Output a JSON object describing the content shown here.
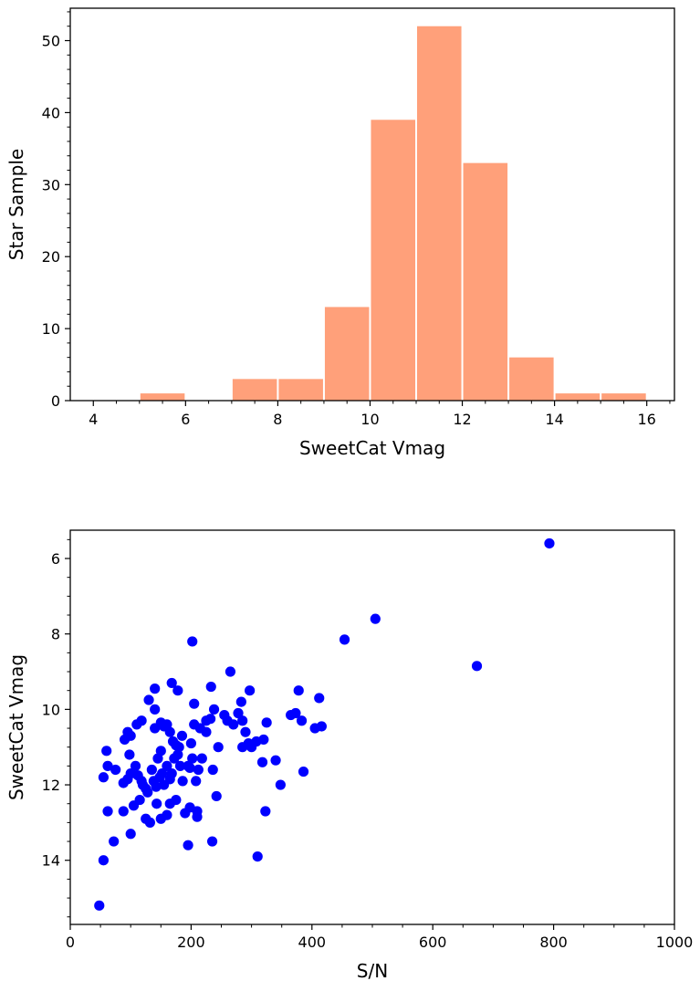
{
  "chart_data": [
    {
      "type": "bar",
      "subtype": "histogram",
      "xlabel": "SweetCat Vmag",
      "ylabel": "Star Sample",
      "xlim": [
        3.5,
        16.6
      ],
      "ylim": [
        0,
        54.5
      ],
      "bin_width": 1,
      "bins": [
        {
          "x0": 5,
          "x1": 6,
          "count": 1
        },
        {
          "x0": 7,
          "x1": 8,
          "count": 3
        },
        {
          "x0": 8,
          "x1": 9,
          "count": 3
        },
        {
          "x0": 9,
          "x1": 10,
          "count": 13
        },
        {
          "x0": 10,
          "x1": 11,
          "count": 39
        },
        {
          "x0": 11,
          "x1": 12,
          "count": 52
        },
        {
          "x0": 12,
          "x1": 13,
          "count": 33
        },
        {
          "x0": 13,
          "x1": 14,
          "count": 6
        },
        {
          "x0": 14,
          "x1": 15,
          "count": 1
        },
        {
          "x0": 15,
          "x1": 16,
          "count": 1
        }
      ],
      "xticks": [
        "4",
        "6",
        "8",
        "10",
        "12",
        "14",
        "16"
      ],
      "yticks": [
        "0",
        "10",
        "20",
        "30",
        "40",
        "50"
      ],
      "bar_color": "#ffa07a",
      "grid": false
    },
    {
      "type": "scatter",
      "xlabel": "S/N",
      "ylabel": "SweetCat Vmag",
      "xlim": [
        0,
        1000
      ],
      "ylim": [
        15.7,
        5.25
      ],
      "y_inverted": true,
      "xticks": [
        "0",
        "200",
        "400",
        "600",
        "800",
        "1000"
      ],
      "yticks": [
        "6",
        "8",
        "10",
        "12",
        "14"
      ],
      "point_color": "#0000ff",
      "grid": false,
      "points": [
        [
          793,
          5.6
        ],
        [
          505,
          7.6
        ],
        [
          454,
          8.15
        ],
        [
          673,
          8.85
        ],
        [
          202,
          8.2
        ],
        [
          48,
          15.2
        ],
        [
          55,
          14.0
        ],
        [
          72,
          13.5
        ],
        [
          100,
          13.3
        ],
        [
          310,
          13.9
        ],
        [
          195,
          13.6
        ],
        [
          235,
          13.5
        ],
        [
          62,
          12.7
        ],
        [
          88,
          12.7
        ],
        [
          105,
          12.55
        ],
        [
          115,
          12.4
        ],
        [
          125,
          12.9
        ],
        [
          132,
          13.0
        ],
        [
          143,
          12.5
        ],
        [
          150,
          12.9
        ],
        [
          160,
          12.8
        ],
        [
          165,
          12.5
        ],
        [
          175,
          12.4
        ],
        [
          190,
          12.75
        ],
        [
          198,
          12.6
        ],
        [
          210,
          12.7
        ],
        [
          210,
          12.85
        ],
        [
          242,
          12.3
        ],
        [
          323,
          12.7
        ],
        [
          348,
          12.0
        ],
        [
          55,
          11.8
        ],
        [
          60,
          11.1
        ],
        [
          62,
          11.5
        ],
        [
          75,
          11.6
        ],
        [
          88,
          11.95
        ],
        [
          95,
          11.85
        ],
        [
          100,
          11.7
        ],
        [
          108,
          11.5
        ],
        [
          112,
          11.75
        ],
        [
          118,
          11.9
        ],
        [
          120,
          12.0
        ],
        [
          125,
          12.1
        ],
        [
          128,
          12.2
        ],
        [
          135,
          11.6
        ],
        [
          138,
          11.9
        ],
        [
          142,
          12.05
        ],
        [
          148,
          11.8
        ],
        [
          152,
          11.7
        ],
        [
          155,
          12.0
        ],
        [
          160,
          11.5
        ],
        [
          165,
          11.85
        ],
        [
          168,
          11.7
        ],
        [
          172,
          11.3
        ],
        [
          178,
          11.2
        ],
        [
          182,
          11.5
        ],
        [
          186,
          11.9
        ],
        [
          195,
          11.5
        ],
        [
          198,
          11.55
        ],
        [
          202,
          11.3
        ],
        [
          208,
          11.9
        ],
        [
          212,
          11.6
        ],
        [
          218,
          11.3
        ],
        [
          236,
          11.6
        ],
        [
          285,
          11.0
        ],
        [
          300,
          11.0
        ],
        [
          318,
          11.4
        ],
        [
          340,
          11.35
        ],
        [
          386,
          11.65
        ],
        [
          98,
          11.2
        ],
        [
          145,
          11.3
        ],
        [
          90,
          10.8
        ],
        [
          95,
          10.6
        ],
        [
          100,
          10.7
        ],
        [
          110,
          10.4
        ],
        [
          118,
          10.3
        ],
        [
          140,
          10.5
        ],
        [
          150,
          10.35
        ],
        [
          155,
          10.45
        ],
        [
          160,
          10.4
        ],
        [
          165,
          10.6
        ],
        [
          170,
          10.85
        ],
        [
          175,
          10.95
        ],
        [
          180,
          11.0
        ],
        [
          185,
          10.7
        ],
        [
          200,
          10.9
        ],
        [
          205,
          10.4
        ],
        [
          215,
          10.5
        ],
        [
          225,
          10.6
        ],
        [
          232,
          10.25
        ],
        [
          238,
          10.0
        ],
        [
          245,
          11.0
        ],
        [
          255,
          10.15
        ],
        [
          260,
          10.3
        ],
        [
          270,
          10.4
        ],
        [
          278,
          10.1
        ],
        [
          285,
          10.3
        ],
        [
          290,
          10.6
        ],
        [
          295,
          10.9
        ],
        [
          308,
          10.85
        ],
        [
          320,
          10.8
        ],
        [
          325,
          10.35
        ],
        [
          365,
          10.15
        ],
        [
          373,
          10.1
        ],
        [
          383,
          10.3
        ],
        [
          405,
          10.5
        ],
        [
          416,
          10.45
        ],
        [
          140,
          10.0
        ],
        [
          130,
          9.75
        ],
        [
          168,
          9.3
        ],
        [
          178,
          9.5
        ],
        [
          205,
          9.85
        ],
        [
          233,
          9.4
        ],
        [
          265,
          9.0
        ],
        [
          283,
          9.8
        ],
        [
          297,
          9.5
        ],
        [
          378,
          9.5
        ],
        [
          412,
          9.7
        ],
        [
          140,
          9.45
        ],
        [
          225,
          10.3
        ],
        [
          150,
          11.1
        ]
      ]
    }
  ]
}
